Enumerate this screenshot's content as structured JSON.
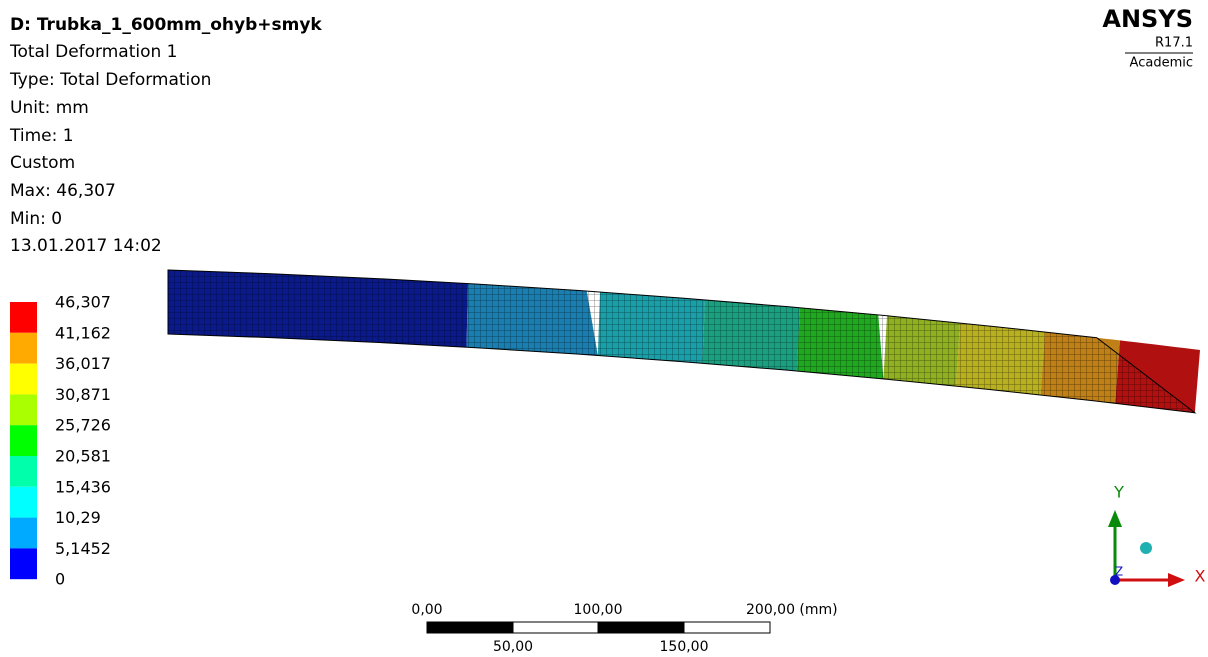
{
  "header": {
    "lines": [
      "D: Trubka_1_600mm_ohyb+smyk",
      "Total Deformation 1",
      "Type: Total Deformation",
      "Unit: mm",
      "Time: 1",
      "Custom",
      "Max: 46,307",
      "Min: 0",
      "13.01.2017 14:02"
    ]
  },
  "brand": {
    "name": "ANSYS",
    "version": "R17.1",
    "license": "Academic"
  },
  "legend": {
    "labels": [
      "46,307",
      "41,162",
      "36,017",
      "30,871",
      "25,726",
      "20,581",
      "15,436",
      "10,29",
      "5,1452",
      "0"
    ],
    "colors": [
      "#ff0000",
      "#ffaa00",
      "#ffff00",
      "#aaff00",
      "#00ff00",
      "#00ffaa",
      "#00ffff",
      "#00aaff",
      "#0000ff"
    ]
  },
  "scale_bar": {
    "top_labels": [
      "0,00",
      "100,00",
      "200,00 (mm)"
    ],
    "bottom_labels": [
      "50,00",
      "150,00"
    ]
  },
  "triad": {
    "y": "Y",
    "x": "X",
    "z": "Z"
  }
}
